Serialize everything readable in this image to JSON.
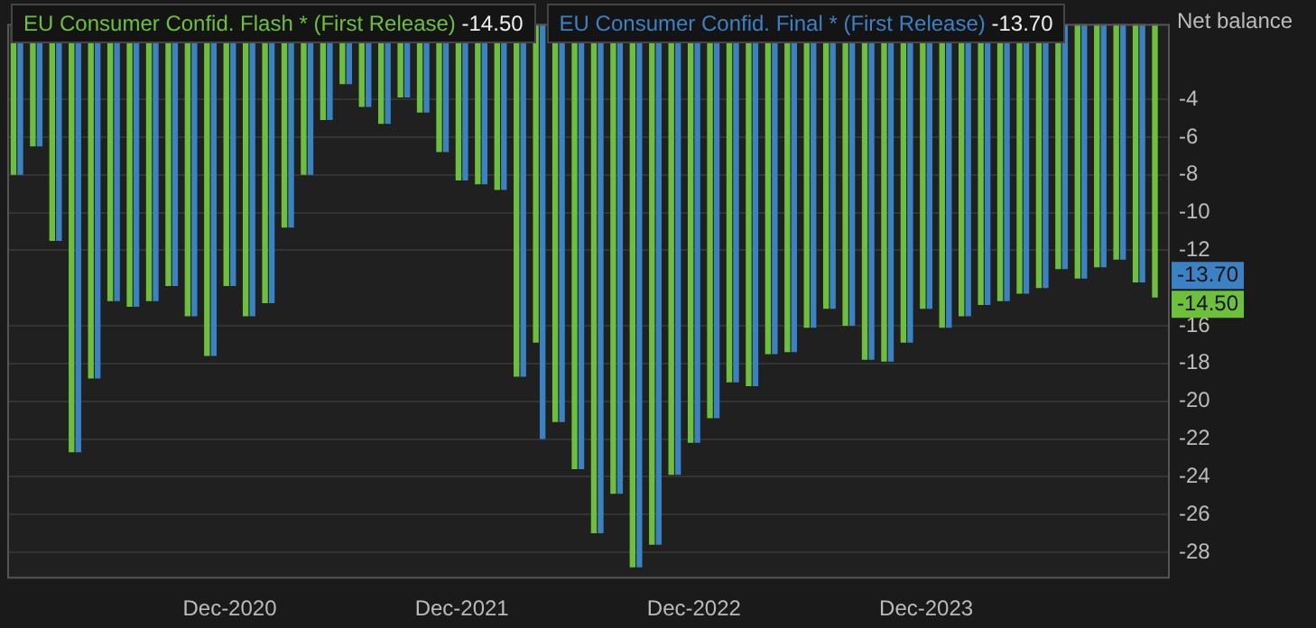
{
  "chart_data": {
    "type": "bar",
    "ylabel": "Net balance",
    "categories": [
      null,
      null,
      null,
      null,
      null,
      null,
      null,
      null,
      null,
      null,
      null,
      "Dec-2020",
      null,
      null,
      null,
      null,
      null,
      null,
      null,
      null,
      null,
      null,
      null,
      "Dec-2021",
      null,
      null,
      null,
      null,
      null,
      null,
      null,
      null,
      null,
      null,
      null,
      "Dec-2022",
      null,
      null,
      null,
      null,
      null,
      null,
      null,
      null,
      null,
      null,
      null,
      "Dec-2023",
      null,
      null,
      null,
      null,
      null,
      null,
      null,
      null,
      null,
      null,
      null,
      null
    ],
    "series": [
      {
        "name": "EU Consumer Confid. Flash * (First Release)",
        "color": "#6cc03a",
        "values": [
          -8.0,
          -6.5,
          -11.5,
          -22.7,
          -18.8,
          -14.7,
          -15.0,
          -14.7,
          -13.9,
          -15.5,
          -17.6,
          -13.9,
          -15.5,
          -14.8,
          -10.8,
          -8.0,
          -5.1,
          -3.2,
          -4.4,
          -5.3,
          -3.9,
          -4.7,
          -6.8,
          -8.3,
          -8.5,
          -8.8,
          -18.7,
          -16.9,
          -21.1,
          -23.6,
          -27.0,
          -24.9,
          -28.8,
          -27.6,
          -23.9,
          -22.2,
          -20.9,
          -19.0,
          -19.2,
          -17.5,
          -17.4,
          -16.1,
          -15.1,
          -16.0,
          -17.8,
          -17.9,
          -16.9,
          -15.1,
          -16.1,
          -15.5,
          -14.9,
          -14.7,
          -14.3,
          -14.0,
          -13.0,
          -13.5,
          -12.9,
          -12.5,
          -13.7,
          -14.5
        ]
      },
      {
        "name": "EU Consumer Confid. Final * (First Release)",
        "color": "#3a82c4",
        "values": [
          -8.0,
          -6.5,
          -11.5,
          -22.7,
          -18.8,
          -14.7,
          -15.0,
          -14.7,
          -13.9,
          -15.5,
          -17.6,
          -13.9,
          -15.5,
          -14.8,
          -10.8,
          -8.0,
          -5.1,
          -3.2,
          -4.4,
          -5.3,
          -3.9,
          -4.7,
          -6.8,
          -8.3,
          -8.5,
          -8.8,
          -18.7,
          -22.0,
          -21.1,
          -23.6,
          -27.0,
          -24.9,
          -28.8,
          -27.6,
          -23.9,
          -22.2,
          -20.9,
          -19.0,
          -19.2,
          -17.5,
          -17.4,
          -16.1,
          -15.1,
          -16.0,
          -17.8,
          -17.9,
          -16.9,
          -15.1,
          -16.1,
          -15.5,
          -14.9,
          -14.7,
          -14.3,
          -14.0,
          -13.0,
          -13.5,
          -12.9,
          -12.5,
          -13.7,
          null
        ]
      }
    ],
    "ylim": [
      -29.3,
      0
    ],
    "yticks": [
      -28,
      -26,
      -24,
      -22,
      -20,
      -18,
      -16,
      -12,
      -10,
      -8,
      -6,
      -4
    ],
    "grid": "y",
    "legend": "top left",
    "annotations": [
      "-14.50",
      "-13.70"
    ]
  }
}
